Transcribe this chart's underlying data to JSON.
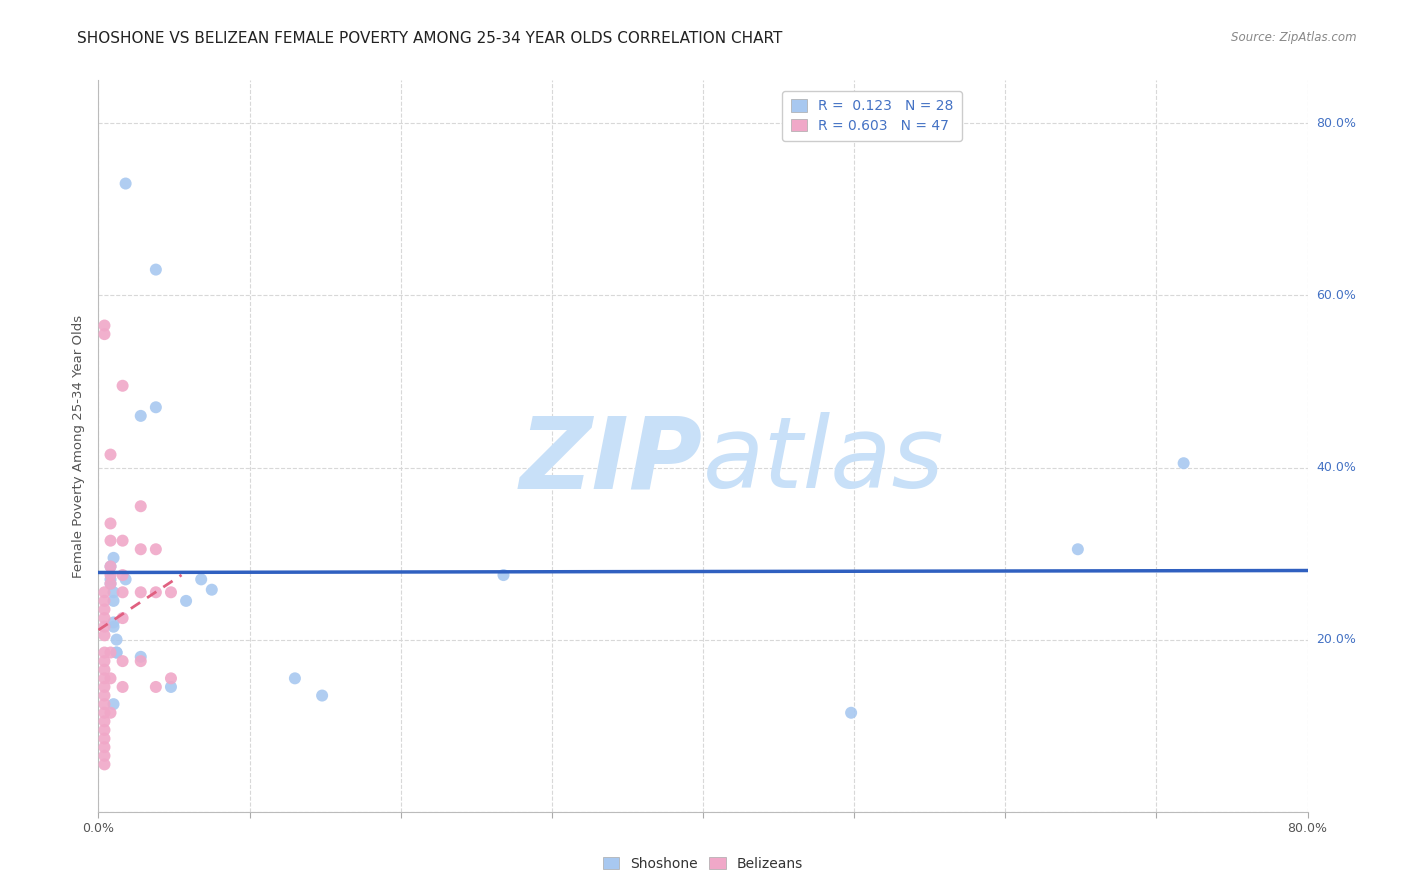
{
  "title": "SHOSHONE VS BELIZEAN FEMALE POVERTY AMONG 25-34 YEAR OLDS CORRELATION CHART",
  "source": "Source: ZipAtlas.com",
  "ylabel": "Female Poverty Among 25-34 Year Olds",
  "xlim": [
    0.0,
    0.8
  ],
  "ylim": [
    0.0,
    0.85
  ],
  "shoshone_R": 0.123,
  "shoshone_N": 28,
  "belizean_R": 0.603,
  "belizean_N": 47,
  "shoshone_color": "#a8c8f0",
  "belizean_color": "#f0a8c8",
  "shoshone_line_color": "#3060c0",
  "belizean_line_color": "#e06080",
  "shoshone_x": [
    0.018,
    0.038,
    0.008,
    0.008,
    0.008,
    0.01,
    0.01,
    0.01,
    0.012,
    0.012,
    0.018,
    0.028,
    0.038,
    0.058,
    0.068,
    0.075,
    0.13,
    0.148,
    0.268,
    0.498,
    0.648,
    0.718,
    0.01,
    0.01,
    0.012,
    0.028,
    0.048,
    0.01
  ],
  "shoshone_y": [
    0.73,
    0.63,
    0.285,
    0.27,
    0.265,
    0.255,
    0.245,
    0.215,
    0.2,
    0.185,
    0.27,
    0.46,
    0.47,
    0.245,
    0.27,
    0.258,
    0.155,
    0.135,
    0.275,
    0.115,
    0.305,
    0.405,
    0.295,
    0.22,
    0.185,
    0.18,
    0.145,
    0.125
  ],
  "belizean_x": [
    0.004,
    0.004,
    0.004,
    0.004,
    0.004,
    0.004,
    0.004,
    0.004,
    0.004,
    0.004,
    0.004,
    0.004,
    0.004,
    0.004,
    0.004,
    0.004,
    0.004,
    0.004,
    0.004,
    0.004,
    0.004,
    0.004,
    0.008,
    0.008,
    0.008,
    0.008,
    0.008,
    0.008,
    0.008,
    0.008,
    0.008,
    0.016,
    0.016,
    0.016,
    0.016,
    0.016,
    0.016,
    0.016,
    0.028,
    0.028,
    0.028,
    0.028,
    0.038,
    0.038,
    0.038,
    0.048,
    0.048
  ],
  "belizean_y": [
    0.565,
    0.555,
    0.255,
    0.245,
    0.235,
    0.225,
    0.215,
    0.205,
    0.185,
    0.175,
    0.165,
    0.155,
    0.145,
    0.135,
    0.125,
    0.115,
    0.105,
    0.095,
    0.085,
    0.075,
    0.065,
    0.055,
    0.415,
    0.335,
    0.315,
    0.285,
    0.275,
    0.265,
    0.185,
    0.155,
    0.115,
    0.495,
    0.315,
    0.275,
    0.255,
    0.225,
    0.175,
    0.145,
    0.355,
    0.305,
    0.255,
    0.175,
    0.305,
    0.255,
    0.145,
    0.255,
    0.155
  ],
  "background_color": "#ffffff",
  "grid_color": "#d8d8d8",
  "watermark_zip": "ZIP",
  "watermark_atlas": "atlas",
  "watermark_color": "#c8e0f8",
  "title_fontsize": 11,
  "axis_label_fontsize": 9.5,
  "tick_fontsize": 9,
  "legend_fontsize": 10,
  "marker_size": 75
}
